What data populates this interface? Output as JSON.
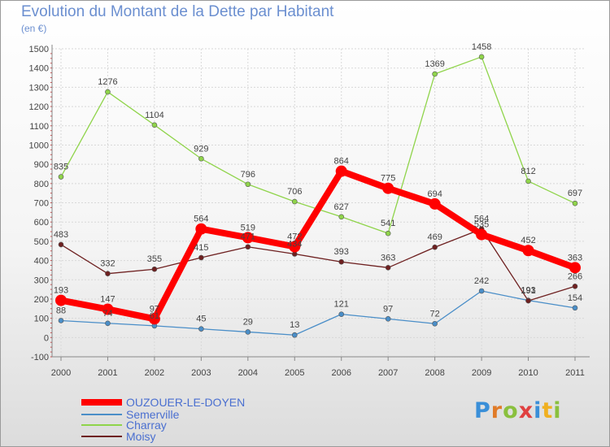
{
  "title": "Evolution du Montant de la Dette par Habitant",
  "subtitle": "(en €)",
  "logo": "Proxiti",
  "chart_data": {
    "type": "line",
    "title": "Evolution du Montant de la Dette par Habitant",
    "subtitle": "(en €)",
    "x": [
      "2000",
      "2001",
      "2002",
      "2003",
      "2004",
      "2005",
      "2006",
      "2007",
      "2008",
      "2009",
      "2010",
      "2011"
    ],
    "ylim": [
      -100,
      1500
    ],
    "yticks": [
      -100,
      0,
      100,
      200,
      300,
      400,
      500,
      600,
      700,
      800,
      900,
      1000,
      1100,
      1200,
      1300,
      1400,
      1500
    ],
    "grid": true,
    "legend_position": "bottom",
    "series": [
      {
        "name": "OUZOUER-LE-DOYEN",
        "color": "#ff0000",
        "values": [
          193,
          147,
          97,
          564,
          519,
          472,
          864,
          775,
          694,
          535,
          452,
          363
        ]
      },
      {
        "name": "Semerville",
        "color": "#4a8ec8",
        "values": [
          88,
          74,
          61,
          45,
          29,
          13,
          121,
          97,
          72,
          242,
          193,
          154
        ]
      },
      {
        "name": "Charray",
        "color": "#8fd44a",
        "values": [
          835,
          1276,
          1104,
          929,
          796,
          706,
          627,
          541,
          1369,
          1458,
          812,
          697
        ]
      },
      {
        "name": "Moisy",
        "color": "#6e2020",
        "values": [
          483,
          332,
          355,
          415,
          471,
          434,
          393,
          363,
          469,
          564,
          191,
          266
        ]
      }
    ]
  }
}
